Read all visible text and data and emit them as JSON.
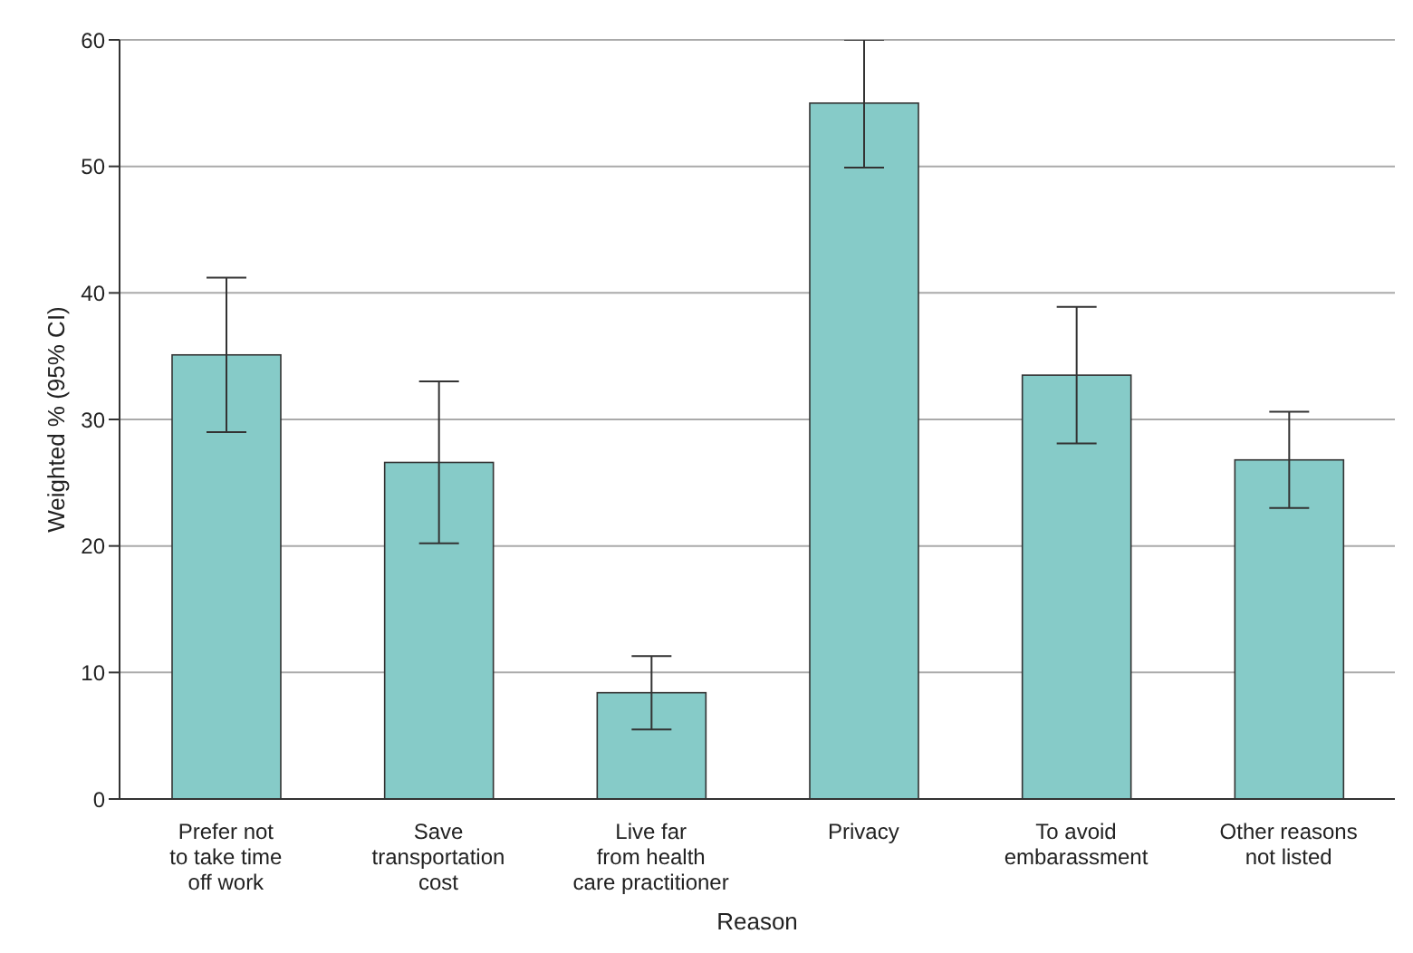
{
  "chart_data": {
    "type": "bar",
    "xlabel": "Reason",
    "ylabel": "Weighted % (95% CI)",
    "categories": [
      "Prefer not\nto take time\noff work",
      "Save\ntransportation\ncost",
      "Live far\nfrom health\ncare practitioner",
      "Privacy",
      "To avoid\nembarassment",
      "Other reasons\nnot listed"
    ],
    "values": [
      35.1,
      26.6,
      8.4,
      55.0,
      33.5,
      26.8
    ],
    "errors": [
      [
        29.0,
        41.2
      ],
      [
        20.2,
        33.0
      ],
      [
        5.5,
        11.3
      ],
      [
        49.9,
        60.0
      ],
      [
        28.1,
        38.9
      ],
      [
        23.0,
        30.6
      ]
    ],
    "color": "#86cbc8",
    "ylim": [
      0,
      60
    ],
    "yticks": [
      0,
      10,
      20,
      30,
      40,
      50,
      60
    ],
    "grid": "y",
    "legend": false
  }
}
